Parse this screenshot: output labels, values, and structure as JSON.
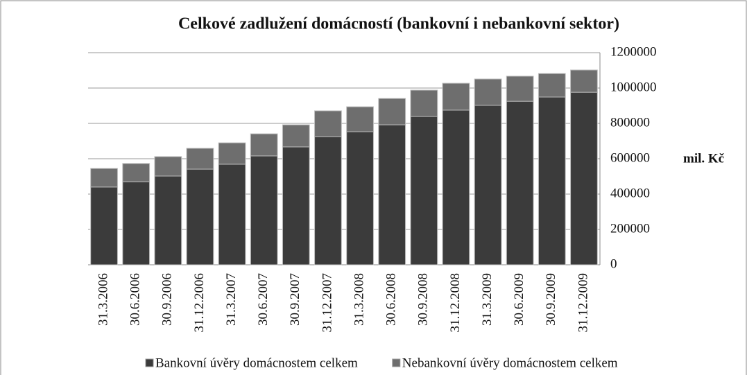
{
  "chart_data": {
    "type": "stacked_bar",
    "title": "Celkové zadlužení domácností (bankovní i nebankovní sektor)",
    "y_label": "mil. Kč",
    "categories": [
      "31.3.2006",
      "30.6.2006",
      "30.9.2006",
      "31.12.2006",
      "31.3.2007",
      "30.6.2007",
      "30.9.2007",
      "31.12.2007",
      "31.3.2008",
      "30.6.2008",
      "30.9.2008",
      "31.12.2008",
      "31.3.2009",
      "30.6.2009",
      "30.9.2009",
      "31.12.2009"
    ],
    "series": [
      {
        "name": "Bankovní úvěry domácnostem celkem",
        "color": "#3b3b3b",
        "values": [
          440000,
          470000,
          502000,
          541000,
          569000,
          616000,
          667000,
          725000,
          753000,
          792000,
          839000,
          875000,
          902000,
          925000,
          949000,
          976000
        ]
      },
      {
        "name": "Nebankovní úvěry domácnostem celkem",
        "color": "#6e6e6e",
        "values": [
          105000,
          103000,
          110000,
          118000,
          121000,
          125000,
          125000,
          146000,
          141000,
          149000,
          149000,
          152000,
          149000,
          142000,
          133000,
          126000
        ]
      }
    ],
    "ylim": [
      0,
      1200000
    ],
    "yticks": [
      0,
      200000,
      400000,
      600000,
      800000,
      1000000,
      1200000
    ],
    "grid": true,
    "y_axis_side": "right",
    "legend": "bottom"
  }
}
